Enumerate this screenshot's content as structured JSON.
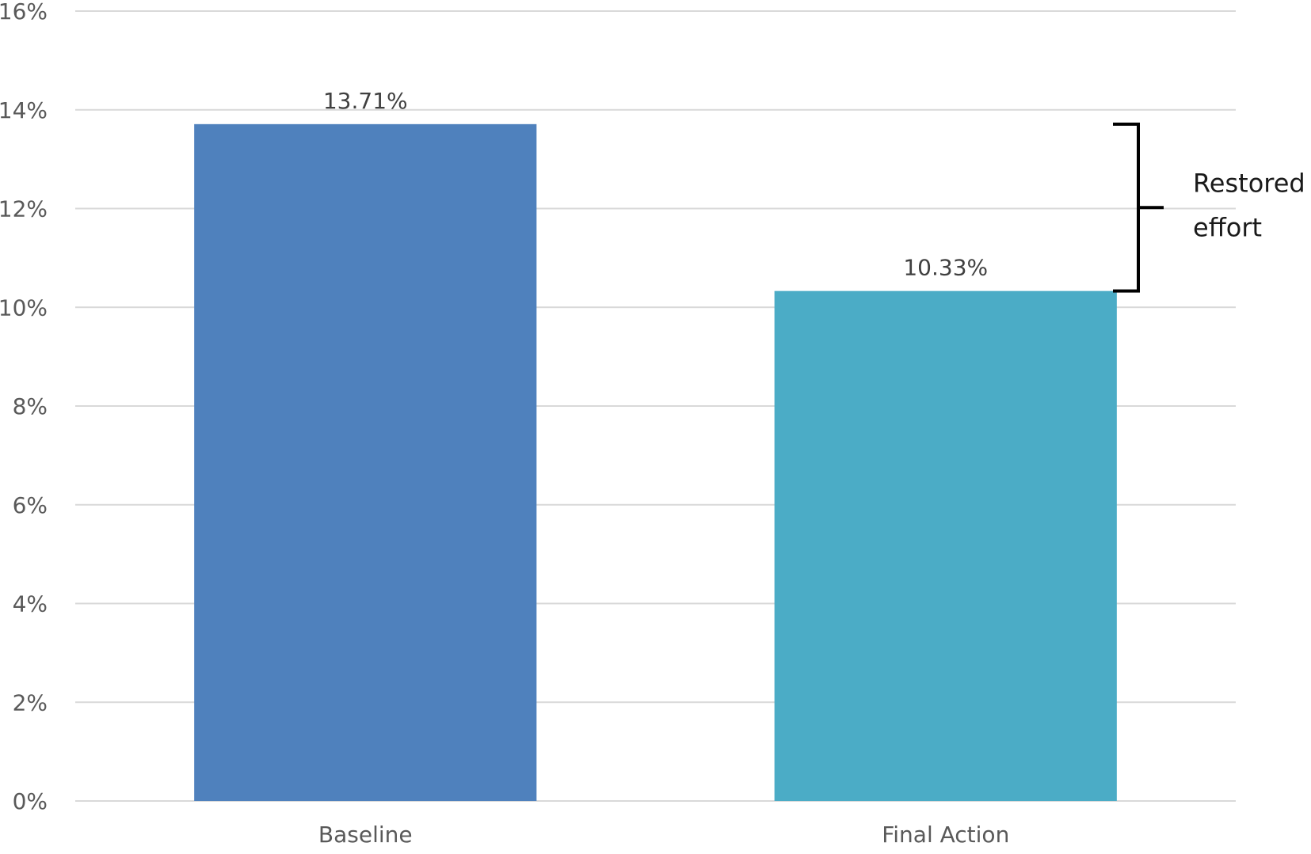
{
  "chart_data": {
    "type": "bar",
    "categories": [
      "Baseline",
      "Final Action"
    ],
    "values": [
      13.71,
      10.33
    ],
    "data_labels": [
      "13.71%",
      "10.33%"
    ],
    "colors": [
      "#4f81bd",
      "#4bacc6"
    ],
    "title": "",
    "xlabel": "",
    "ylabel": "",
    "ylim": [
      0,
      16
    ],
    "yticks": [
      0,
      2,
      4,
      6,
      8,
      10,
      12,
      14,
      16
    ],
    "ytick_labels": [
      "0%",
      "2%",
      "4%",
      "6%",
      "8%",
      "10%",
      "12%",
      "14%",
      "16%"
    ],
    "grid": true,
    "legend": "none",
    "annotation": {
      "type": "bracket",
      "from": 13.71,
      "to": 10.33,
      "lines": [
        "Restored",
        "effort"
      ],
      "color": "#000000"
    }
  }
}
